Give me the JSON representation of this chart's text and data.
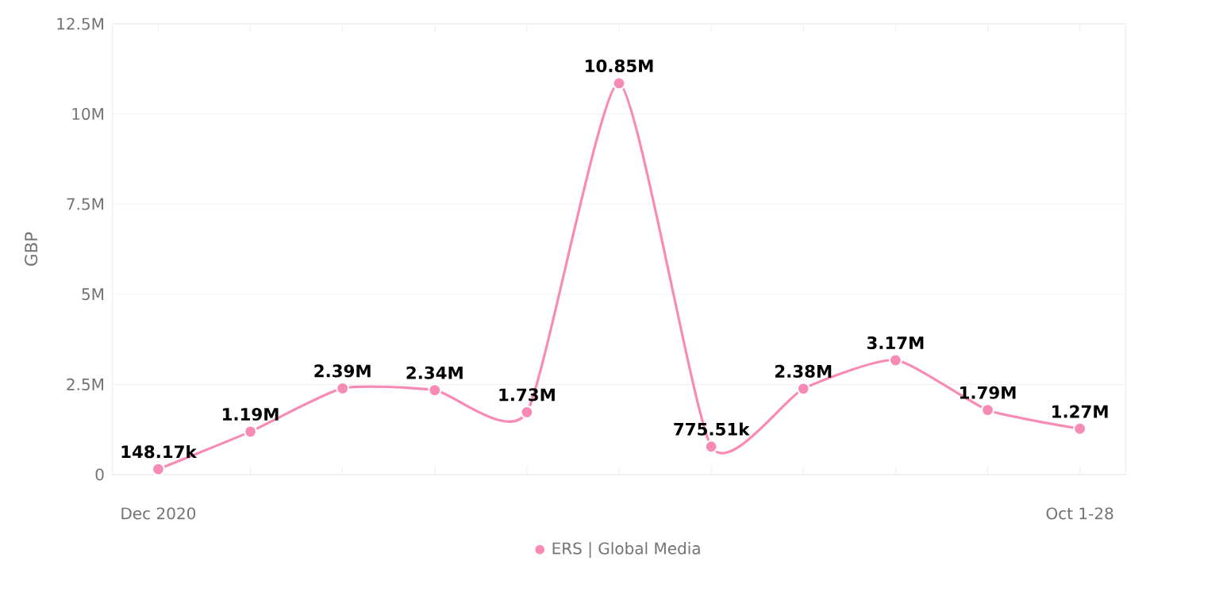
{
  "chart_data": {
    "type": "line",
    "ylabel": "GBP",
    "categories": [
      "Dec 2020",
      null,
      null,
      null,
      null,
      null,
      null,
      null,
      null,
      null,
      "Oct 1-28"
    ],
    "series": [
      {
        "name": "ERS | Global Media",
        "color": "#f78bb5",
        "values": [
          148170,
          1190000,
          2390000,
          2340000,
          1730000,
          10850000,
          775510,
          2380000,
          3170000,
          1790000,
          1270000
        ],
        "value_labels": [
          "148.17k",
          "1.19M",
          "2.39M",
          "2.34M",
          "1.73M",
          "10.85M",
          "775.51k",
          "2.38M",
          "3.17M",
          "1.79M",
          "1.27M"
        ]
      }
    ],
    "ylim": [
      0,
      12500000
    ],
    "yticks": [
      0,
      {
        "value": 2500000,
        "label": "2.5M"
      },
      {
        "value": 5000000,
        "label": "5M"
      },
      {
        "value": 7500000,
        "label": "7.5M"
      },
      {
        "value": 10000000,
        "label": "10M"
      },
      {
        "value": 12500000,
        "label": "12.5M"
      }
    ],
    "grid": "y",
    "legend": "bottom",
    "marker": "circle"
  }
}
